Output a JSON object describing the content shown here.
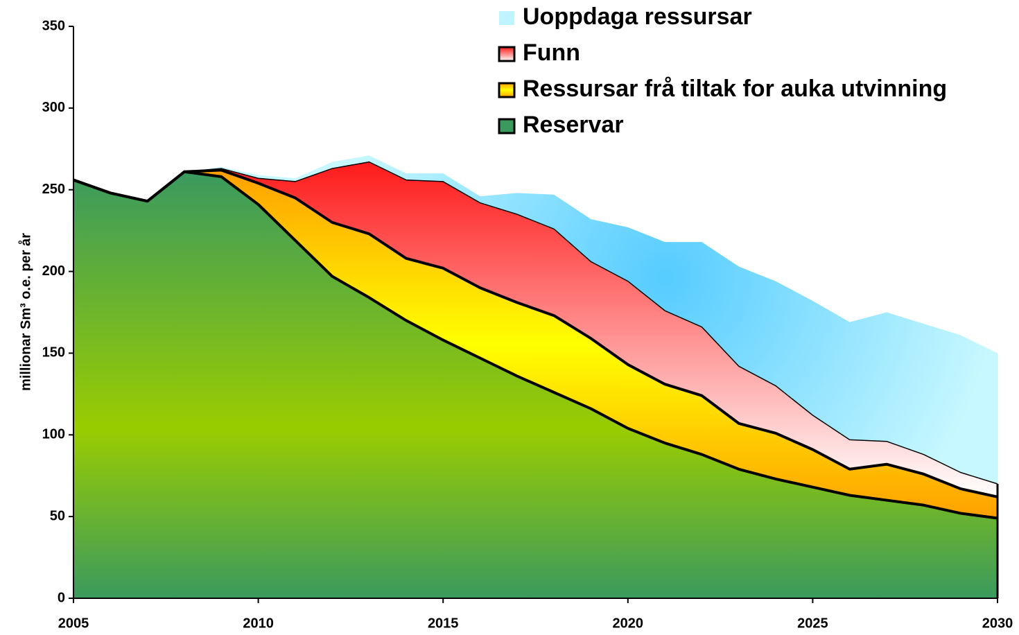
{
  "chart_data": {
    "type": "stacked_area",
    "y_label": "millionar Sm³ o.e. per år",
    "x": [
      2005,
      2006,
      2007,
      2008,
      2009,
      2010,
      2011,
      2012,
      2013,
      2014,
      2015,
      2016,
      2017,
      2018,
      2019,
      2020,
      2021,
      2022,
      2023,
      2024,
      2025,
      2026,
      2027,
      2028,
      2029,
      2030
    ],
    "series": [
      {
        "name": "Reservar",
        "color": "#99cc00",
        "values": [
          256,
          248,
          243,
          261,
          258,
          241,
          219,
          197,
          184,
          170,
          158,
          147,
          136,
          126,
          116,
          104,
          95,
          88,
          79,
          73,
          68,
          63,
          60,
          57,
          52,
          49
        ]
      },
      {
        "name": "Ressursar frå tiltak for auka utvinning",
        "color": "#ffff00",
        "values": [
          0,
          0,
          0,
          0,
          4,
          13,
          26,
          33,
          39,
          38,
          44,
          43,
          45,
          47,
          43,
          39,
          36,
          36,
          28,
          28,
          23,
          16,
          22,
          19,
          15,
          13
        ]
      },
      {
        "name": "Funn",
        "color": "#ff1a1a",
        "values": [
          0,
          0,
          0,
          0,
          1,
          3,
          10,
          33,
          44,
          48,
          53,
          52,
          54,
          53,
          47,
          51,
          45,
          42,
          35,
          29,
          21,
          18,
          14,
          12,
          10,
          8
        ]
      },
      {
        "name": "Uoppdaga ressursar",
        "color": "#55ccff",
        "values": [
          0,
          0,
          0,
          0,
          1,
          2,
          2,
          4,
          4,
          4,
          5,
          4,
          13,
          21,
          26,
          33,
          42,
          52,
          61,
          64,
          70,
          72,
          79,
          80,
          84,
          80
        ]
      }
    ],
    "xlim": [
      2005,
      2030
    ],
    "xticks": [
      2005,
      2010,
      2015,
      2020,
      2025,
      2030
    ],
    "ylim": [
      0,
      350
    ],
    "yticks": [
      0,
      50,
      100,
      150,
      200,
      250,
      300,
      350
    ],
    "legend": "upper right"
  }
}
